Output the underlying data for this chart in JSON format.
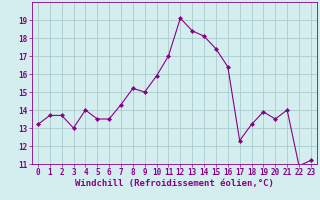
{
  "x": [
    0,
    1,
    2,
    3,
    4,
    5,
    6,
    7,
    8,
    9,
    10,
    11,
    12,
    13,
    14,
    15,
    16,
    17,
    18,
    19,
    20,
    21,
    22,
    23
  ],
  "y": [
    13.2,
    13.7,
    13.7,
    13.0,
    14.0,
    13.5,
    13.5,
    14.3,
    15.2,
    15.0,
    15.9,
    17.0,
    19.1,
    18.4,
    18.1,
    17.4,
    16.4,
    12.3,
    13.2,
    13.9,
    13.5,
    14.0,
    10.9,
    11.2
  ],
  "line_color": "#880088",
  "marker": "D",
  "marker_size": 2.0,
  "bg_color": "#d4eef0",
  "grid_color": "#aacccc",
  "xlabel": "Windchill (Refroidissement éolien,°C)",
  "ylim": [
    11,
    20
  ],
  "xlim_min": -0.5,
  "xlim_max": 23.5,
  "yticks": [
    11,
    12,
    13,
    14,
    15,
    16,
    17,
    18,
    19
  ],
  "xticks": [
    0,
    1,
    2,
    3,
    4,
    5,
    6,
    7,
    8,
    9,
    10,
    11,
    12,
    13,
    14,
    15,
    16,
    17,
    18,
    19,
    20,
    21,
    22,
    23
  ],
  "tick_color": "#880088",
  "tick_fontsize": 5.5,
  "xlabel_fontsize": 6.5,
  "line_width": 0.8
}
